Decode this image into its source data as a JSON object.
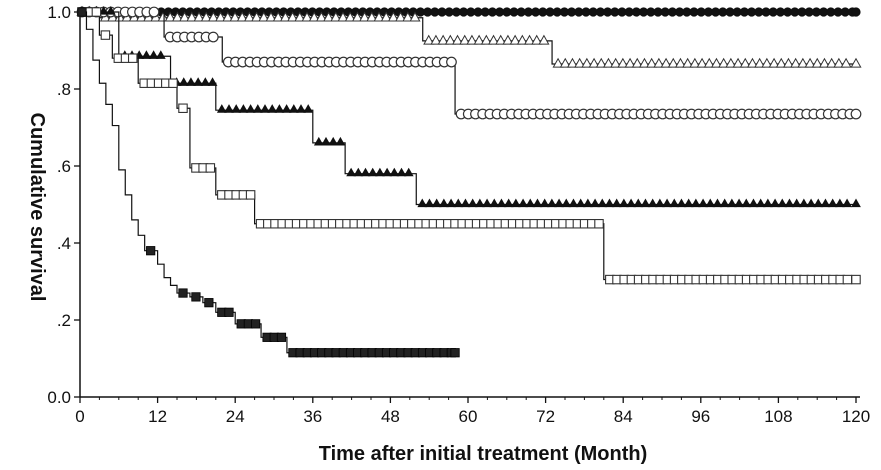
{
  "chart_data": {
    "type": "line",
    "step": true,
    "title": "",
    "xlabel": "Time after initial treatment (Month)",
    "ylabel": "Cumulative survival",
    "xlim": [
      0,
      120
    ],
    "ylim": [
      0.0,
      1.0
    ],
    "xticks": [
      0,
      12,
      24,
      36,
      48,
      60,
      72,
      84,
      96,
      108,
      120
    ],
    "xtick_labels": [
      "0",
      "12",
      "24",
      "36",
      "48",
      "60",
      "72",
      "84",
      "96",
      "108",
      "120"
    ],
    "yticks": [
      0.0,
      0.2,
      0.4,
      0.6,
      0.8,
      1.0
    ],
    "ytick_labels": [
      "0.0",
      ".2",
      ".4",
      ".6",
      ".8",
      "1.0"
    ],
    "grid": false,
    "series": [
      {
        "marker": "filled-circle",
        "color": "#111111",
        "x": [
          0,
          120
        ],
        "y": [
          1.0,
          1.0
        ]
      },
      {
        "marker": "open-triangle",
        "color": "#333333",
        "x": [
          0,
          3,
          53,
          73,
          120
        ],
        "y": [
          1.0,
          0.985,
          0.925,
          0.865,
          0.865
        ]
      },
      {
        "marker": "open-circle",
        "color": "#333333",
        "x": [
          0,
          13,
          22,
          58,
          120
        ],
        "y": [
          1.0,
          0.935,
          0.87,
          0.735,
          0.735
        ]
      },
      {
        "marker": "filled-triangle",
        "color": "#111111",
        "x": [
          0,
          6,
          14,
          21,
          36,
          41,
          52,
          120
        ],
        "y": [
          1.0,
          0.885,
          0.815,
          0.745,
          0.66,
          0.58,
          0.5,
          0.5
        ]
      },
      {
        "marker": "open-square",
        "color": "#333333",
        "x": [
          0,
          3,
          5,
          9,
          15,
          17,
          21,
          27,
          81,
          120
        ],
        "y": [
          1.0,
          0.94,
          0.88,
          0.815,
          0.75,
          0.595,
          0.525,
          0.45,
          0.305,
          0.305
        ]
      },
      {
        "marker": "filled-square",
        "color": "#111111",
        "x": [
          0,
          1,
          2,
          3,
          4,
          5,
          6,
          7,
          8,
          9,
          10,
          12,
          13,
          14,
          15,
          17,
          19,
          21,
          24,
          28,
          32,
          58
        ],
        "y": [
          1.0,
          0.955,
          0.875,
          0.815,
          0.76,
          0.705,
          0.59,
          0.525,
          0.46,
          0.42,
          0.38,
          0.345,
          0.31,
          0.29,
          0.27,
          0.26,
          0.245,
          0.22,
          0.19,
          0.155,
          0.115,
          0.115
        ]
      }
    ]
  }
}
